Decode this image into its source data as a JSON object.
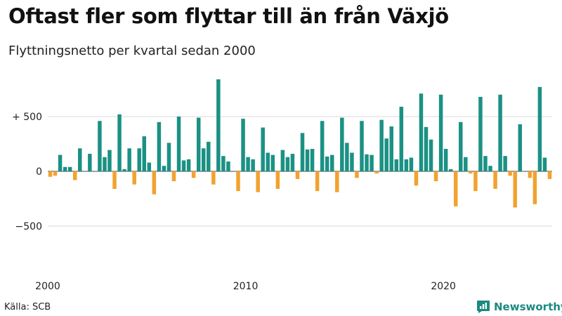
{
  "title": "Oftast fler som flyttar till än från Växjö",
  "subtitle": "Flyttningsnetto per kvartal sedan 2000",
  "source": "Källa: SCB",
  "brand": {
    "name": "Newsworthy",
    "icon": "newsworthy-logo-icon",
    "color": "#1b8a80"
  },
  "colors": {
    "positive": "#1b9184",
    "negative": "#f2a22e",
    "grid": "#d9d9d9",
    "zero": "#444444"
  },
  "chart_data": {
    "type": "bar",
    "title": "Oftast fler som flyttar till än från Växjö",
    "subtitle": "Flyttningsnetto per kvartal sedan 2000",
    "xlabel": "",
    "ylabel": "",
    "ylim": [
      -750,
      860
    ],
    "start": "2000 Q1",
    "y_ticks": [
      {
        "value": 500,
        "label": "+ 500"
      },
      {
        "value": 0,
        "label": "0"
      },
      {
        "value": -500,
        "label": "−500"
      }
    ],
    "x_ticks": [
      {
        "index": 0,
        "label": "2000"
      },
      {
        "index": 40,
        "label": "2010"
      },
      {
        "index": 80,
        "label": "2020"
      }
    ],
    "values": [
      -50,
      -40,
      150,
      40,
      40,
      -80,
      210,
      0,
      160,
      0,
      460,
      130,
      195,
      -160,
      520,
      20,
      210,
      -120,
      210,
      320,
      80,
      -210,
      450,
      50,
      260,
      -90,
      500,
      100,
      110,
      -60,
      490,
      210,
      270,
      -120,
      840,
      140,
      90,
      0,
      -180,
      480,
      130,
      110,
      -190,
      400,
      170,
      150,
      -160,
      195,
      130,
      160,
      -70,
      350,
      200,
      205,
      -180,
      460,
      135,
      150,
      -190,
      490,
      260,
      170,
      -60,
      460,
      155,
      150,
      -20,
      470,
      300,
      410,
      110,
      590,
      110,
      125,
      -130,
      710,
      405,
      290,
      -90,
      700,
      205,
      20,
      -320,
      450,
      130,
      -20,
      -180,
      680,
      140,
      50,
      -160,
      700,
      140,
      -40,
      -330,
      430,
      0,
      -60,
      -300,
      770,
      125,
      -70
    ]
  }
}
